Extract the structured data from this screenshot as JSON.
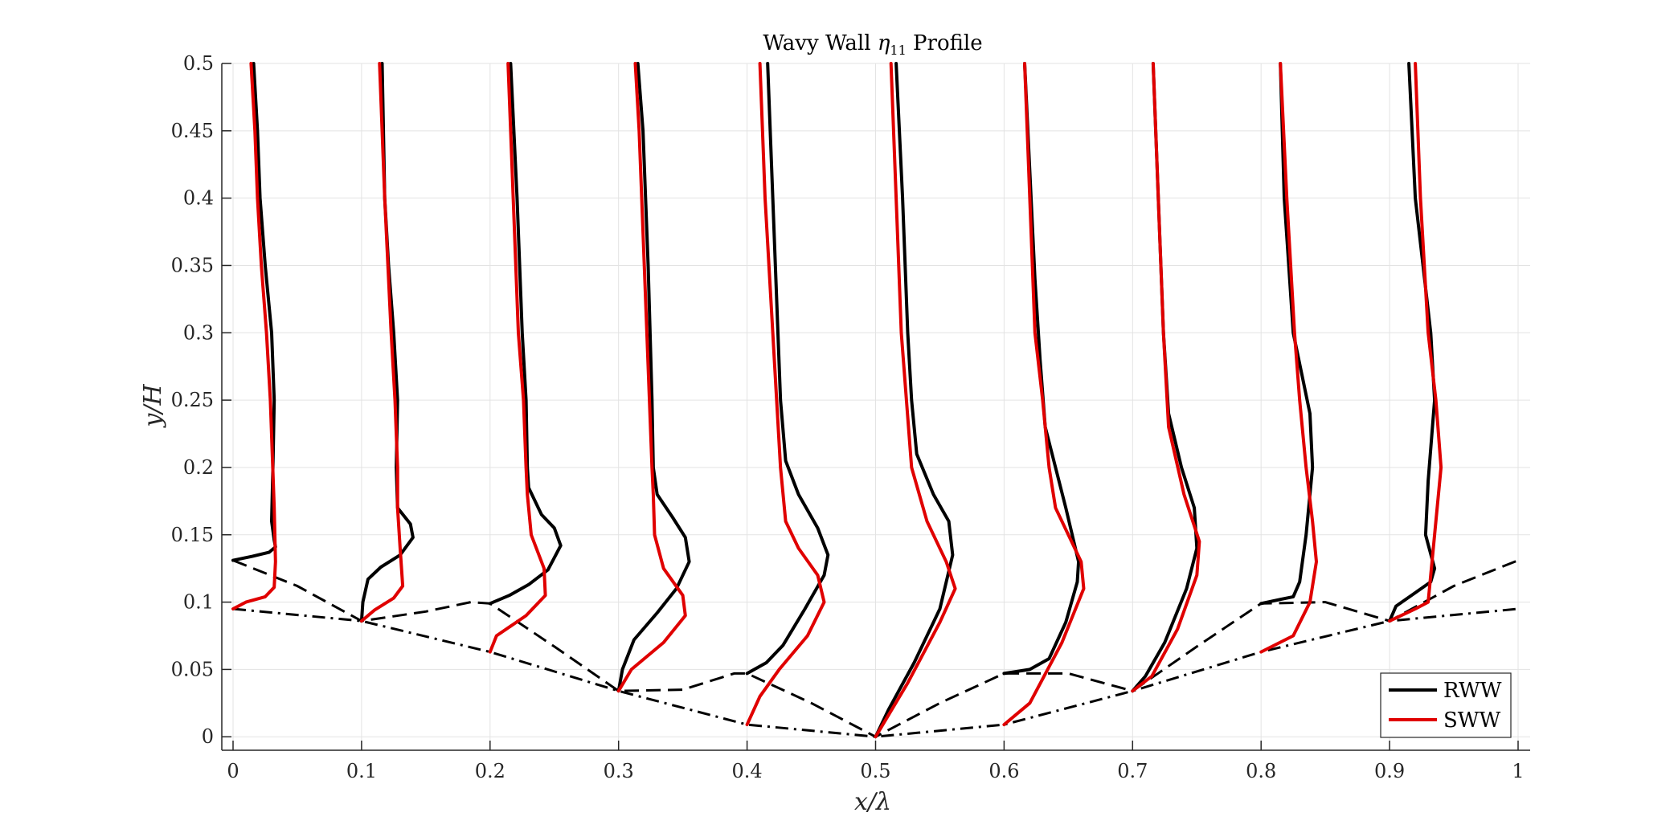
{
  "chart_data": {
    "type": "line",
    "title_prefix": "Wavy Wall ",
    "title_symbol": "η",
    "title_subscript": "11",
    "title_suffix": " Profile",
    "xlabel": "x/λ",
    "ylabel": "y/H",
    "xlim": [
      0,
      1
    ],
    "ylim": [
      -0.01,
      0.5
    ],
    "xticks": [
      "0",
      "0.1",
      "0.2",
      "0.3",
      "0.4",
      "0.5",
      "0.6",
      "0.7",
      "0.8",
      "0.9",
      "1"
    ],
    "yticks": [
      "0",
      "0.05",
      "0.1",
      "0.15",
      "0.2",
      "0.25",
      "0.3",
      "0.35",
      "0.4",
      "0.45",
      "0.5"
    ],
    "grid": true,
    "legend_position": "bottom-right",
    "colors": {
      "rww": "#000000",
      "sww": "#e00000",
      "wall": "#000000",
      "grid": "#e3e3e3"
    },
    "legend": [
      {
        "label": "RWW",
        "color": "#000000"
      },
      {
        "label": "SWW",
        "color": "#e00000"
      }
    ],
    "wall_profile_dashdot": {
      "style": "dash-dot",
      "x": [
        0,
        0.1,
        0.2,
        0.3,
        0.4,
        0.5,
        0.6,
        0.7,
        0.8,
        0.9,
        1.0
      ],
      "y": [
        0.095,
        0.086,
        0.063,
        0.034,
        0.009,
        0.0,
        0.009,
        0.034,
        0.063,
        0.086,
        0.095
      ]
    },
    "wall_profile_dashed": {
      "style": "dashed",
      "x": [
        0,
        0.05,
        0.1,
        0.15,
        0.185,
        0.2,
        0.25,
        0.3,
        0.35,
        0.39,
        0.4,
        0.45,
        0.5,
        0.55,
        0.6,
        0.65,
        0.7,
        0.75,
        0.8,
        0.85,
        0.9,
        0.95,
        1.0
      ],
      "y": [
        0.131,
        0.112,
        0.086,
        0.093,
        0.1,
        0.099,
        0.067,
        0.034,
        0.035,
        0.047,
        0.047,
        0.025,
        0.0,
        0.025,
        0.047,
        0.047,
        0.034,
        0.067,
        0.099,
        0.1,
        0.086,
        0.112,
        0.131
      ]
    },
    "series": [
      {
        "name": "RWW",
        "profiles": [
          {
            "x": [
              0.0,
              0.015,
              0.028,
              0.033,
              0.032,
              0.03,
              0.031,
              0.032,
              0.03,
              0.025,
              0.021,
              0.019,
              0.016
            ],
            "y": [
              0.131,
              0.134,
              0.137,
              0.141,
              0.146,
              0.16,
              0.2,
              0.25,
              0.3,
              0.35,
              0.4,
              0.45,
              0.5
            ]
          },
          {
            "x": [
              0.1,
              0.101,
              0.105,
              0.115,
              0.13,
              0.14,
              0.138,
              0.128,
              0.127,
              0.128,
              0.125,
              0.121,
              0.118,
              0.116
            ],
            "y": [
              0.086,
              0.1,
              0.117,
              0.126,
              0.135,
              0.148,
              0.158,
              0.17,
              0.2,
              0.25,
              0.3,
              0.35,
              0.4,
              0.5
            ]
          },
          {
            "x": [
              0.2,
              0.215,
              0.23,
              0.245,
              0.255,
              0.25,
              0.24,
              0.23,
              0.229,
              0.228,
              0.225,
              0.221,
              0.216
            ],
            "y": [
              0.099,
              0.105,
              0.113,
              0.124,
              0.142,
              0.155,
              0.165,
              0.185,
              0.2,
              0.25,
              0.3,
              0.4,
              0.5
            ]
          },
          {
            "x": [
              0.3,
              0.303,
              0.312,
              0.33,
              0.345,
              0.355,
              0.352,
              0.342,
              0.33,
              0.327,
              0.326,
              0.323,
              0.319,
              0.315
            ],
            "y": [
              0.034,
              0.05,
              0.072,
              0.092,
              0.11,
              0.13,
              0.148,
              0.163,
              0.18,
              0.2,
              0.25,
              0.35,
              0.45,
              0.5
            ]
          },
          {
            "x": [
              0.4,
              0.415,
              0.428,
              0.445,
              0.46,
              0.463,
              0.455,
              0.44,
              0.43,
              0.426,
              0.424,
              0.42,
              0.416
            ],
            "y": [
              0.047,
              0.055,
              0.068,
              0.095,
              0.12,
              0.135,
              0.155,
              0.18,
              0.205,
              0.25,
              0.3,
              0.4,
              0.5
            ]
          },
          {
            "x": [
              0.5,
              0.51,
              0.53,
              0.55,
              0.56,
              0.557,
              0.545,
              0.532,
              0.528,
              0.525,
              0.521,
              0.516
            ],
            "y": [
              0.0,
              0.02,
              0.055,
              0.095,
              0.135,
              0.16,
              0.18,
              0.21,
              0.25,
              0.3,
              0.4,
              0.5
            ]
          },
          {
            "x": [
              0.6,
              0.62,
              0.635,
              0.648,
              0.657,
              0.658,
              0.648,
              0.632,
              0.628,
              0.624,
              0.62,
              0.616
            ],
            "y": [
              0.047,
              0.05,
              0.058,
              0.085,
              0.115,
              0.13,
              0.17,
              0.23,
              0.28,
              0.34,
              0.42,
              0.5
            ]
          },
          {
            "x": [
              0.7,
              0.71,
              0.725,
              0.742,
              0.75,
              0.748,
              0.738,
              0.728,
              0.724,
              0.72,
              0.716
            ],
            "y": [
              0.034,
              0.045,
              0.07,
              0.11,
              0.14,
              0.17,
              0.2,
              0.24,
              0.3,
              0.4,
              0.5
            ]
          },
          {
            "x": [
              0.8,
              0.815,
              0.825,
              0.83,
              0.835,
              0.84,
              0.838,
              0.825,
              0.818,
              0.815
            ],
            "y": [
              0.099,
              0.102,
              0.104,
              0.115,
              0.15,
              0.2,
              0.24,
              0.3,
              0.4,
              0.5
            ]
          },
          {
            "x": [
              0.9,
              0.905,
              0.92,
              0.932,
              0.935,
              0.928,
              0.93,
              0.935,
              0.932,
              0.92,
              0.915
            ],
            "y": [
              0.086,
              0.097,
              0.107,
              0.115,
              0.125,
              0.15,
              0.19,
              0.25,
              0.3,
              0.4,
              0.5
            ]
          }
        ]
      },
      {
        "name": "SWW",
        "profiles": [
          {
            "x": [
              0.0,
              0.01,
              0.025,
              0.032,
              0.033,
              0.032,
              0.029,
              0.026,
              0.022,
              0.019,
              0.017,
              0.014
            ],
            "y": [
              0.095,
              0.1,
              0.104,
              0.111,
              0.13,
              0.17,
              0.25,
              0.3,
              0.35,
              0.4,
              0.45,
              0.5
            ]
          },
          {
            "x": [
              0.1,
              0.11,
              0.125,
              0.132,
              0.13,
              0.128,
              0.128,
              0.126,
              0.123,
              0.118,
              0.114
            ],
            "y": [
              0.086,
              0.094,
              0.103,
              0.112,
              0.14,
              0.17,
              0.2,
              0.25,
              0.3,
              0.4,
              0.5
            ]
          },
          {
            "x": [
              0.2,
              0.205,
              0.228,
              0.243,
              0.242,
              0.232,
              0.229,
              0.228,
              0.226,
              0.222,
              0.218,
              0.214
            ],
            "y": [
              0.063,
              0.075,
              0.09,
              0.105,
              0.125,
              0.15,
              0.18,
              0.2,
              0.25,
              0.3,
              0.4,
              0.5
            ]
          },
          {
            "x": [
              0.3,
              0.31,
              0.335,
              0.352,
              0.35,
              0.335,
              0.328,
              0.327,
              0.326,
              0.324,
              0.32,
              0.316,
              0.313
            ],
            "y": [
              0.034,
              0.05,
              0.07,
              0.09,
              0.105,
              0.125,
              0.15,
              0.18,
              0.2,
              0.25,
              0.35,
              0.45,
              0.5
            ]
          },
          {
            "x": [
              0.4,
              0.41,
              0.425,
              0.447,
              0.46,
              0.455,
              0.44,
              0.43,
              0.426,
              0.423,
              0.42,
              0.414,
              0.41
            ],
            "y": [
              0.009,
              0.03,
              0.05,
              0.075,
              0.1,
              0.12,
              0.14,
              0.16,
              0.2,
              0.25,
              0.3,
              0.4,
              0.5
            ]
          },
          {
            "x": [
              0.5,
              0.525,
              0.55,
              0.562,
              0.555,
              0.54,
              0.528,
              0.524,
              0.52,
              0.516,
              0.512
            ],
            "y": [
              0.0,
              0.04,
              0.085,
              0.11,
              0.13,
              0.16,
              0.2,
              0.25,
              0.3,
              0.4,
              0.5
            ]
          },
          {
            "x": [
              0.6,
              0.62,
              0.645,
              0.662,
              0.66,
              0.64,
              0.635,
              0.63,
              0.624,
              0.62,
              0.616
            ],
            "y": [
              0.009,
              0.025,
              0.07,
              0.11,
              0.13,
              0.17,
              0.2,
              0.25,
              0.3,
              0.4,
              0.5
            ]
          },
          {
            "x": [
              0.7,
              0.715,
              0.735,
              0.75,
              0.752,
              0.74,
              0.728,
              0.724,
              0.72,
              0.716
            ],
            "y": [
              0.034,
              0.045,
              0.08,
              0.12,
              0.145,
              0.18,
              0.23,
              0.3,
              0.4,
              0.5
            ]
          },
          {
            "x": [
              0.8,
              0.825,
              0.838,
              0.843,
              0.84,
              0.835,
              0.83,
              0.826,
              0.82,
              0.815
            ],
            "y": [
              0.063,
              0.075,
              0.1,
              0.13,
              0.16,
              0.2,
              0.25,
              0.3,
              0.4,
              0.5
            ]
          },
          {
            "x": [
              0.9,
              0.92,
              0.93,
              0.932,
              0.935,
              0.94,
              0.936,
              0.93,
              0.924,
              0.92
            ],
            "y": [
              0.086,
              0.095,
              0.1,
              0.12,
              0.15,
              0.2,
              0.25,
              0.3,
              0.4,
              0.5
            ]
          }
        ]
      }
    ]
  }
}
